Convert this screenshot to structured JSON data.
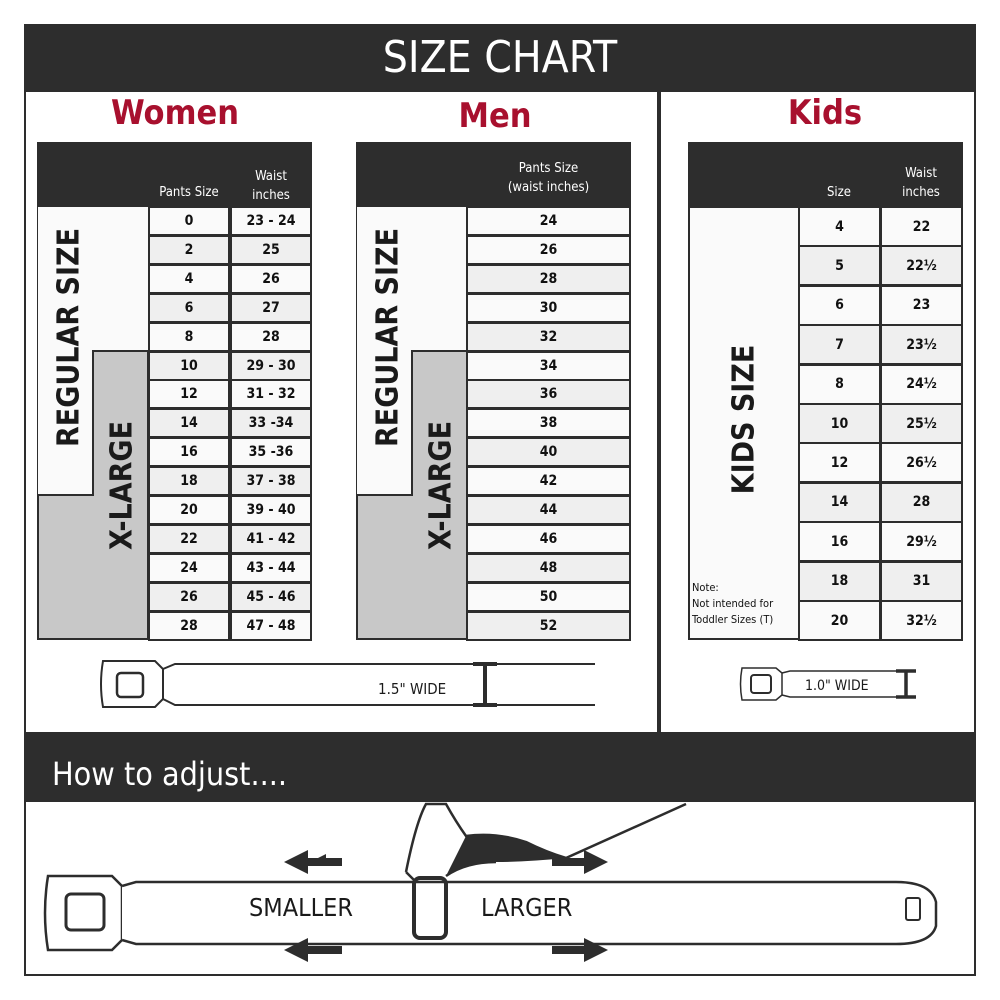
{
  "title": "SIZE CHART",
  "women": {
    "heading": "Women",
    "col_size": "Pants Size",
    "col_waist_1": "Waist",
    "col_waist_2": "inches",
    "label_regular": "REGULAR SIZE",
    "label_xlarge": "X-LARGE",
    "rows": [
      [
        "0",
        "23 - 24"
      ],
      [
        "2",
        "25"
      ],
      [
        "4",
        "26"
      ],
      [
        "6",
        "27"
      ],
      [
        "8",
        "28"
      ],
      [
        "10",
        "29 - 30"
      ],
      [
        "12",
        "31 - 32"
      ],
      [
        "14",
        "33 -34"
      ],
      [
        "16",
        "35 -36"
      ],
      [
        "18",
        "37 - 38"
      ],
      [
        "20",
        "39 - 40"
      ],
      [
        "22",
        "41 - 42"
      ],
      [
        "24",
        "43 - 44"
      ],
      [
        "26",
        "45 - 46"
      ],
      [
        "28",
        "47 - 48"
      ]
    ],
    "belt_width": "1.5\" WIDE"
  },
  "men": {
    "heading": "Men",
    "col_1": "Pants Size",
    "col_2": "(waist inches)",
    "label_regular": "REGULAR SIZE",
    "label_xlarge": "X-LARGE",
    "rows": [
      "24",
      "26",
      "28",
      "30",
      "32",
      "34",
      "36",
      "38",
      "40",
      "42",
      "44",
      "46",
      "48",
      "50",
      "52"
    ]
  },
  "kids": {
    "heading": "Kids",
    "col_size": "Size",
    "col_waist_1": "Waist",
    "col_waist_2": "inches",
    "label": "KIDS SIZE",
    "note_1": "Note:",
    "note_2": "Not intended for",
    "note_3": "Toddler Sizes (T)",
    "rows": [
      [
        "4",
        "22"
      ],
      [
        "5",
        "22½"
      ],
      [
        "6",
        "23"
      ],
      [
        "7",
        "23½"
      ],
      [
        "8",
        "24½"
      ],
      [
        "10",
        "25½"
      ],
      [
        "12",
        "26½"
      ],
      [
        "14",
        "28"
      ],
      [
        "16",
        "29½"
      ],
      [
        "18",
        "31"
      ],
      [
        "20",
        "32½"
      ]
    ],
    "belt_width": "1.0\" WIDE"
  },
  "adjust": {
    "heading": "How to adjust....",
    "smaller": "SMALLER",
    "larger": "LARGER"
  },
  "colors": {
    "dark": "#2d2d2d",
    "accent": "#a8102e",
    "xlarge_gray": "#c8c8c8",
    "row_alt": "#efefef"
  }
}
